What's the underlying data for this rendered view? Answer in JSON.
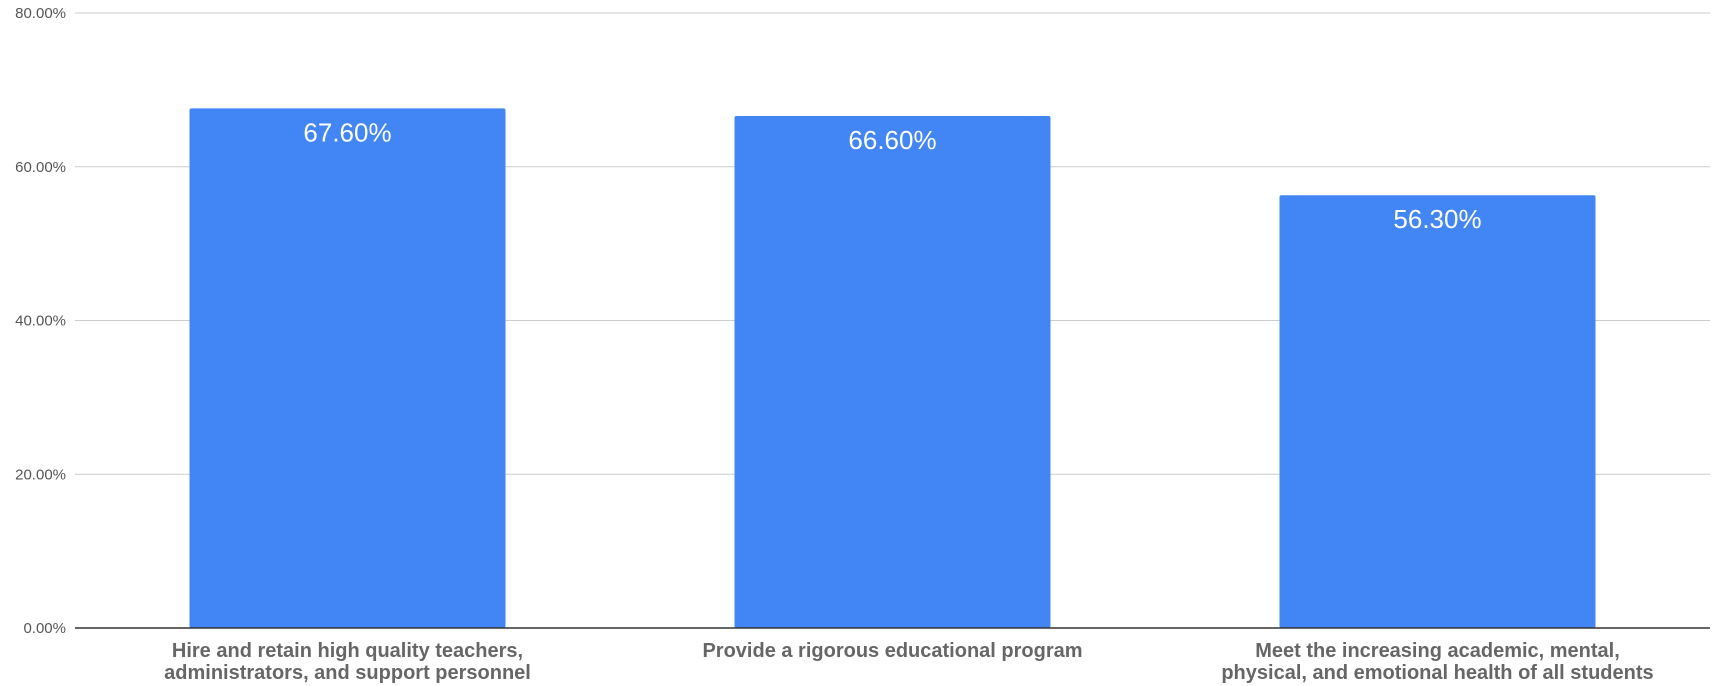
{
  "chart_data": {
    "type": "bar",
    "title": "",
    "xlabel": "",
    "ylabel": "",
    "categories": [
      [
        "Hire and retain high quality teachers,",
        "administrators, and support personnel"
      ],
      [
        "Provide a rigorous educational program"
      ],
      [
        "Meet the increasing academic, mental,",
        "physical, and emotional health of all students"
      ]
    ],
    "values": [
      67.6,
      66.6,
      56.3
    ],
    "data_labels": [
      "67.60%",
      "66.60%",
      "56.30%"
    ],
    "ylim": [
      0,
      80
    ],
    "yticks": [
      0,
      20,
      40,
      60,
      80
    ],
    "ytick_labels": [
      "0.00%",
      "20.00%",
      "40.00%",
      "60.00%",
      "80.00%"
    ],
    "grid": true,
    "legend": "none",
    "bar_color": "#4285f4",
    "grid_color": "#cccccc",
    "axis_color": "#333333"
  }
}
